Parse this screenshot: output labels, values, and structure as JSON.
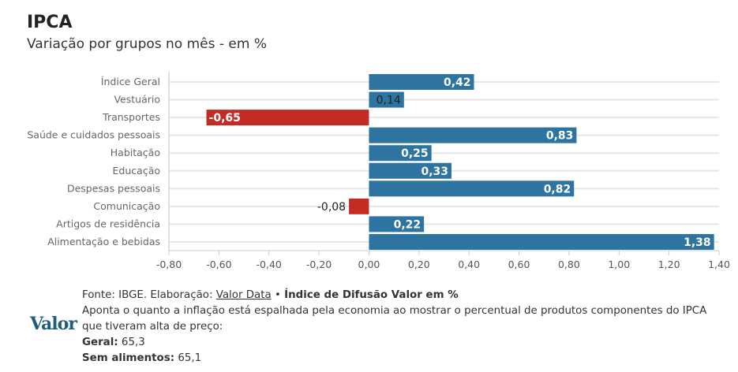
{
  "header": {
    "title": "IPCA",
    "subtitle": "Variação por grupos no mês - em %"
  },
  "chart_data": {
    "type": "bar",
    "orientation": "horizontal",
    "categories": [
      "Índice Geral",
      "Vestuário",
      "Transportes",
      "Saúde e cuidados pessoais",
      "Habitação",
      "Educação",
      "Despesas pessoais",
      "Comunicação",
      "Artigos de residência",
      "Alimentação e bebidas"
    ],
    "values": [
      0.42,
      0.14,
      -0.65,
      0.83,
      0.25,
      0.33,
      0.82,
      -0.08,
      0.22,
      1.38
    ],
    "value_labels": [
      "0,42",
      "0,14",
      "-0,65",
      "0,83",
      "0,25",
      "0,33",
      "0,82",
      "-0,08",
      "0,22",
      "1,38"
    ],
    "xlim": [
      -0.8,
      1.4
    ],
    "x_ticks": [
      -0.8,
      -0.6,
      -0.4,
      -0.2,
      0,
      0.2,
      0.4,
      0.6,
      0.8,
      1.0,
      1.2,
      1.4
    ],
    "x_tick_labels": [
      "-0,80",
      "-0,60",
      "-0,40",
      "-0,20",
      "0,00",
      "0,20",
      "0,40",
      "0,60",
      "0,80",
      "1,00",
      "1,20",
      "1,40"
    ],
    "grid": true,
    "colors": {
      "positive": "#2e74a0",
      "negative": "#c52b25"
    }
  },
  "footer": {
    "source_prefix": "Fonte: IBGE. Elaboração: ",
    "source_link": "Valor Data",
    "separator": " • ",
    "index_title": "Índice de Difusão Valor em %",
    "description": "Aponta o quanto a inflação está espalhada pela economia ao mostrar o percentual de produtos componentes do IPCA que tiveram alta de preço:",
    "geral_label": "Geral:",
    "geral_value": " 65,3",
    "sem_label": "Sem alimentos:",
    "sem_value": " 65,1",
    "logo": "Valor"
  }
}
